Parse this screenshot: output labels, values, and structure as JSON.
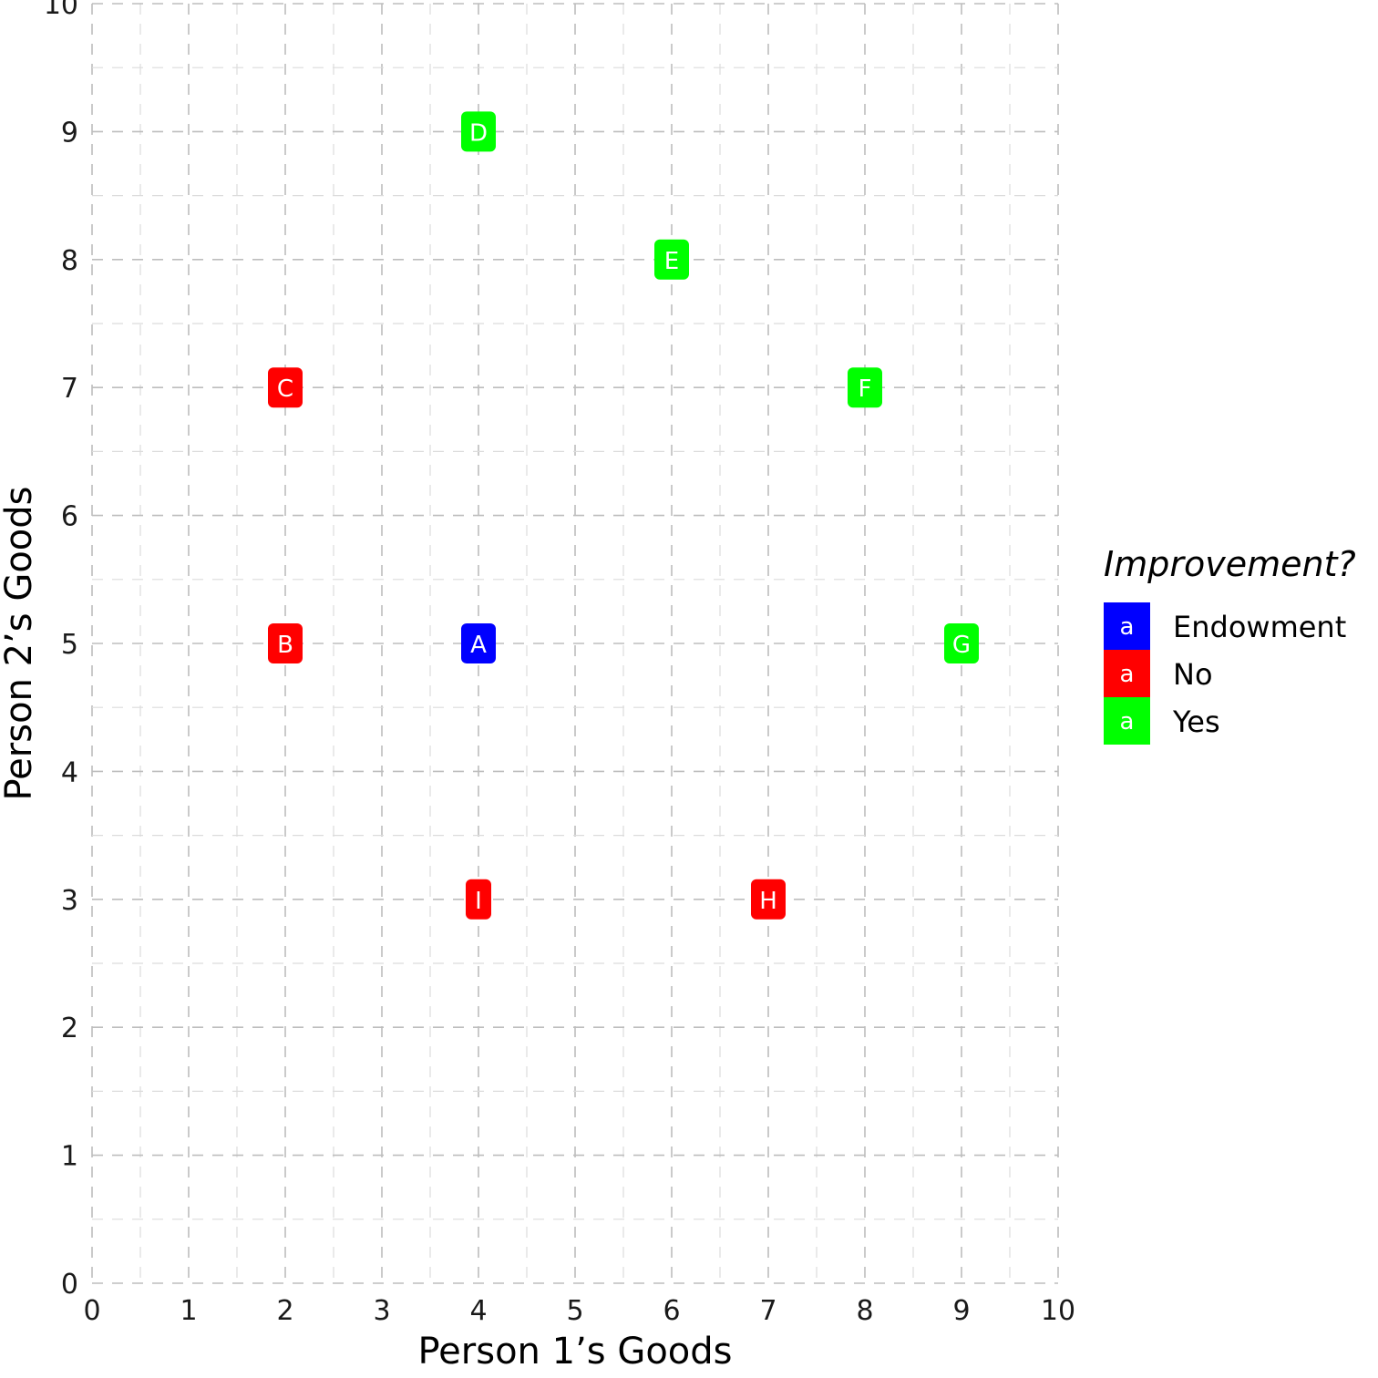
{
  "chart_data": {
    "type": "scatter",
    "xlabel": "Person 1’s Goods",
    "ylabel": "Person 2’s Goods",
    "xlim": [
      0,
      10
    ],
    "ylim": [
      0,
      10
    ],
    "x_ticks": [
      0,
      1,
      2,
      3,
      4,
      5,
      6,
      7,
      8,
      9,
      10
    ],
    "y_ticks": [
      0,
      1,
      2,
      3,
      4,
      5,
      6,
      7,
      8,
      9,
      10
    ],
    "grid": true,
    "grid_style": "dashed",
    "legend": {
      "title": "Improvement?",
      "placement": "right",
      "key_glyph": "a",
      "entries": [
        {
          "label": "Endowment",
          "color": "#0000ff"
        },
        {
          "label": "No",
          "color": "#ff0000"
        },
        {
          "label": "Yes",
          "color": "#00ff00"
        }
      ]
    },
    "points": [
      {
        "label": "A",
        "x": 4,
        "y": 5,
        "group": "Endowment"
      },
      {
        "label": "B",
        "x": 2,
        "y": 5,
        "group": "No"
      },
      {
        "label": "C",
        "x": 2,
        "y": 7,
        "group": "No"
      },
      {
        "label": "D",
        "x": 4,
        "y": 9,
        "group": "Yes"
      },
      {
        "label": "E",
        "x": 6,
        "y": 8,
        "group": "Yes"
      },
      {
        "label": "F",
        "x": 8,
        "y": 7,
        "group": "Yes"
      },
      {
        "label": "G",
        "x": 9,
        "y": 5,
        "group": "Yes"
      },
      {
        "label": "H",
        "x": 7,
        "y": 3,
        "group": "No"
      },
      {
        "label": "I",
        "x": 4,
        "y": 3,
        "group": "No"
      }
    ]
  }
}
